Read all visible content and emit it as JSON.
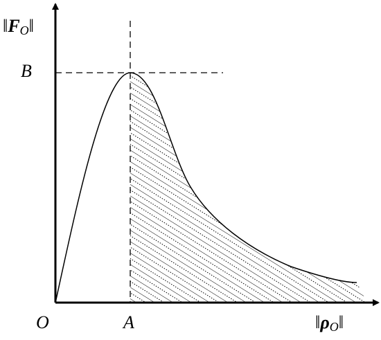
{
  "y_axis_label": {
    "prefix": "‖",
    "symbol": "F",
    "subscript": "O",
    "suffix": "‖"
  },
  "x_axis_label": {
    "prefix": "‖",
    "symbol": "ρ",
    "subscript": "O",
    "suffix": "‖"
  },
  "peak_value_label": "B",
  "peak_position_label": "A",
  "origin_label": "O"
}
